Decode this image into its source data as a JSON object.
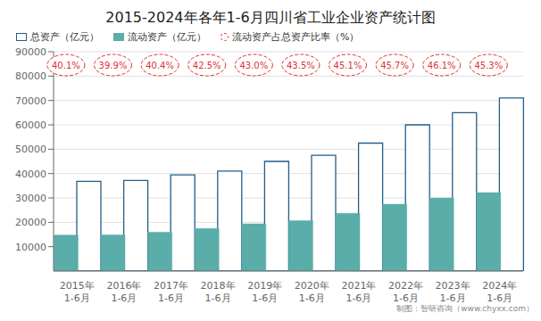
{
  "chart_data": {
    "type": "bar",
    "title": "2015-2024年各年1-6月四川省工业企业资产统计图",
    "categories": [
      "2015年\n1-6月",
      "2016年\n1-6月",
      "2017年\n1-6月",
      "2018年\n1-6月",
      "2019年\n1-6月",
      "2020年\n1-6月",
      "2021年\n1-6月",
      "2022年\n1-6月",
      "2023年\n1-6月",
      "2024年\n1-6月"
    ],
    "series": [
      {
        "name": "总资产（亿元）",
        "type": "bar",
        "color": "#1f5f8b",
        "values": [
          36800,
          37200,
          39500,
          41000,
          45000,
          47500,
          52500,
          60000,
          65000,
          71000
        ]
      },
      {
        "name": "流动资产（亿元）",
        "type": "bar",
        "color": "#5aada8",
        "values": [
          14770,
          14843,
          15958,
          17466,
          19350,
          20663,
          23678,
          27420,
          29965,
          32163
        ]
      },
      {
        "name": "流动资产占总资产比率（%）",
        "type": "label",
        "color": "#e03030",
        "marker": "circle",
        "line_style": "dashed",
        "values": [
          40.1,
          39.9,
          40.4,
          42.5,
          43.0,
          43.5,
          45.1,
          45.7,
          46.1,
          45.3
        ],
        "value_labels": [
          "40.1%",
          "39.9%",
          "40.4%",
          "42.5%",
          "43.0%",
          "43.5%",
          "45.1%",
          "45.7%",
          "46.1%",
          "45.3%"
        ]
      }
    ],
    "ylim": [
      0,
      90000
    ],
    "yticks": [
      10000,
      20000,
      30000,
      40000,
      50000,
      60000,
      70000,
      80000,
      90000
    ],
    "grid": true,
    "legend": "upper left",
    "annotations": [
      "制图：智研咨询（www.chyxx.com）"
    ]
  }
}
